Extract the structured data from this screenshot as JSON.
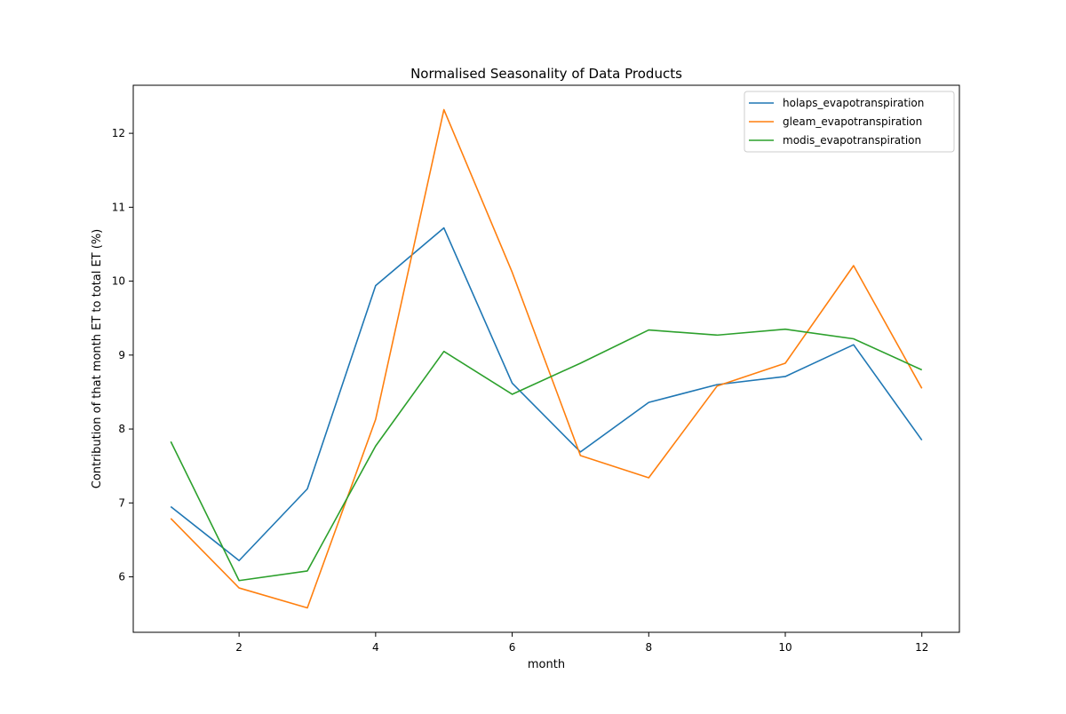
{
  "chart_data": {
    "type": "line",
    "title": "Normalised Seasonality of Data Products",
    "xlabel": "month",
    "ylabel": "Contribution of that month ET to total ET (%)",
    "xlim": [
      0.45,
      12.55
    ],
    "ylim": [
      5.25,
      12.65
    ],
    "x": [
      1,
      2,
      3,
      4,
      5,
      6,
      7,
      8,
      9,
      10,
      11,
      12
    ],
    "x_ticks": [
      2,
      4,
      6,
      8,
      10,
      12
    ],
    "y_ticks": [
      6,
      7,
      8,
      9,
      10,
      11,
      12
    ],
    "grid": false,
    "legend_position": "top-right",
    "series": [
      {
        "name": "holaps_evapotranspiration",
        "color": "#1f77b4",
        "values": [
          6.95,
          6.22,
          7.19,
          9.94,
          10.72,
          8.62,
          7.69,
          8.36,
          8.6,
          8.71,
          9.14,
          7.85
        ]
      },
      {
        "name": "gleam_evapotranspiration",
        "color": "#ff7f0e",
        "values": [
          6.79,
          5.85,
          5.58,
          8.13,
          12.32,
          10.12,
          7.64,
          7.34,
          8.58,
          8.89,
          10.21,
          8.55
        ]
      },
      {
        "name": "modis_evapotranspiration",
        "color": "#2ca02c",
        "values": [
          7.83,
          5.95,
          6.08,
          7.77,
          9.05,
          8.47,
          8.89,
          9.34,
          9.27,
          9.35,
          9.22,
          8.8
        ]
      }
    ]
  }
}
